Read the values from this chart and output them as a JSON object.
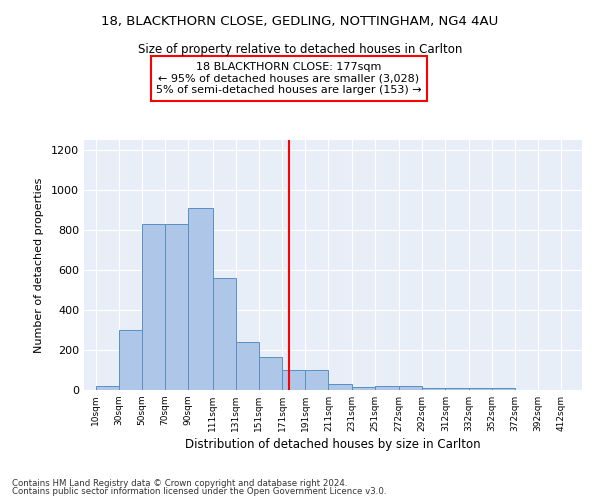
{
  "title1": "18, BLACKTHORN CLOSE, GEDLING, NOTTINGHAM, NG4 4AU",
  "title2": "Size of property relative to detached houses in Carlton",
  "xlabel": "Distribution of detached houses by size in Carlton",
  "ylabel": "Number of detached properties",
  "footer1": "Contains HM Land Registry data © Crown copyright and database right 2024.",
  "footer2": "Contains public sector information licensed under the Open Government Licence v3.0.",
  "annotation_line1": "18 BLACKTHORN CLOSE: 177sqm",
  "annotation_line2": "← 95% of detached houses are smaller (3,028)",
  "annotation_line3": "5% of semi-detached houses are larger (153) →",
  "property_size": 177,
  "bar_left_edges": [
    10,
    30,
    50,
    70,
    90,
    111,
    131,
    151,
    171,
    191,
    211,
    231,
    251,
    272,
    292,
    312,
    332,
    352,
    372,
    392
  ],
  "bar_widths": [
    20,
    20,
    20,
    20,
    21,
    20,
    20,
    20,
    20,
    20,
    20,
    20,
    21,
    20,
    20,
    20,
    20,
    20,
    20,
    20
  ],
  "bar_heights": [
    20,
    300,
    830,
    830,
    910,
    560,
    240,
    165,
    100,
    100,
    30,
    15,
    20,
    20,
    10,
    10,
    10,
    10,
    0,
    0
  ],
  "bar_color": "#aec6e8",
  "bar_edge_color": "#5a8fc2",
  "vline_x": 177,
  "vline_color": "red",
  "ylim": [
    0,
    1250
  ],
  "xlim": [
    0,
    430
  ],
  "plot_bg_color": "#e8eef8",
  "grid_color": "white",
  "tick_labels": [
    "10sqm",
    "30sqm",
    "50sqm",
    "70sqm",
    "90sqm",
    "111sqm",
    "131sqm",
    "151sqm",
    "171sqm",
    "191sqm",
    "211sqm",
    "231sqm",
    "251sqm",
    "272sqm",
    "292sqm",
    "312sqm",
    "332sqm",
    "352sqm",
    "372sqm",
    "392sqm",
    "412sqm"
  ]
}
